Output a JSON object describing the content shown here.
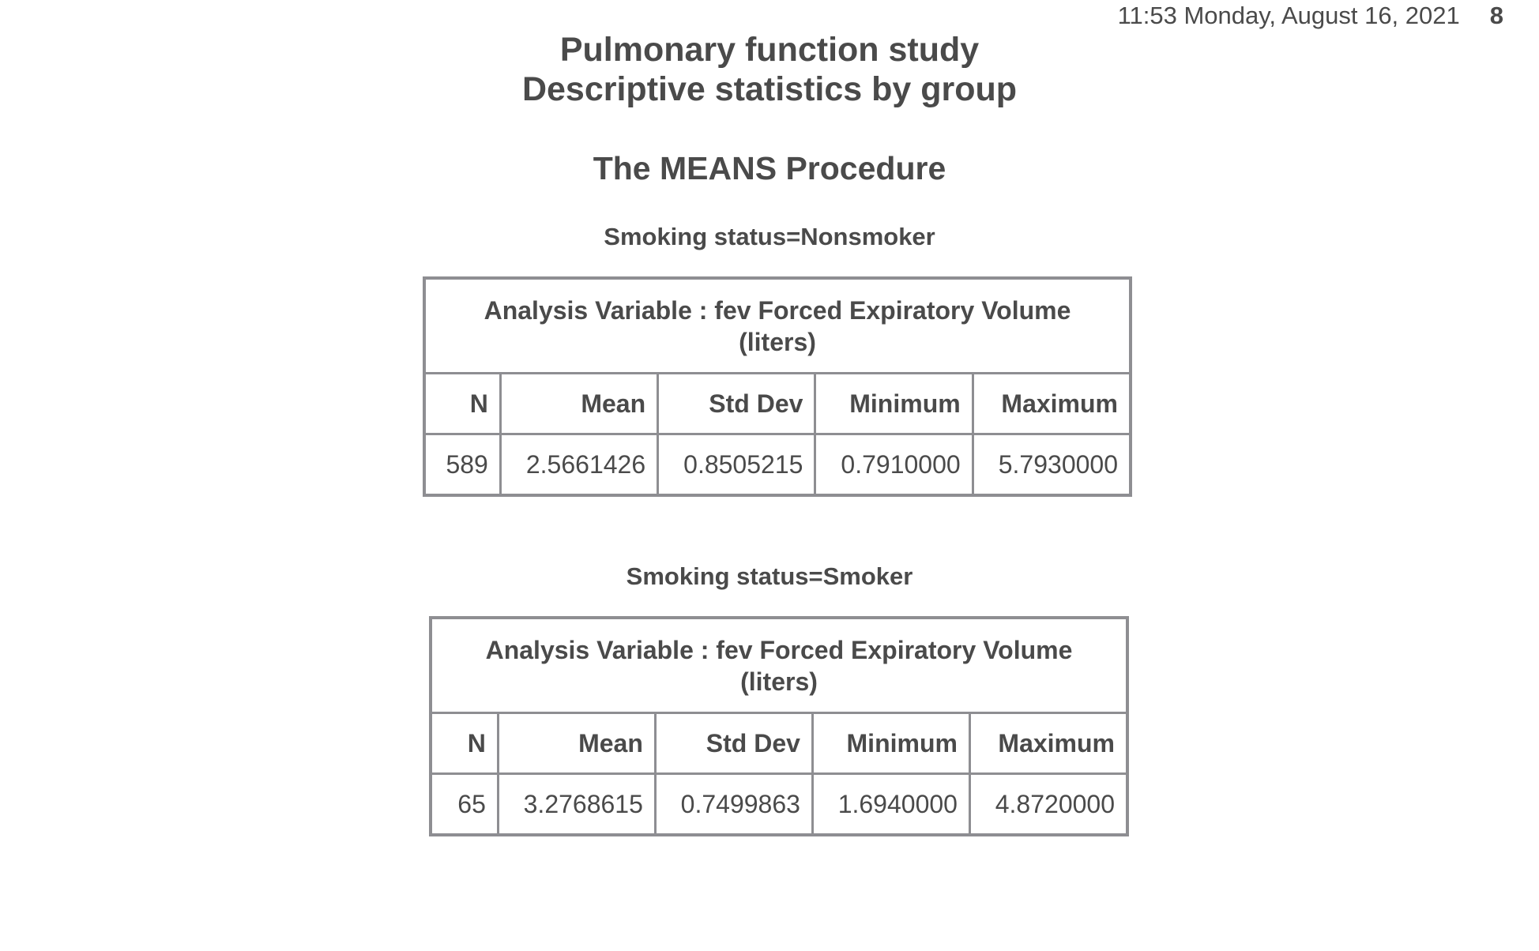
{
  "header": {
    "timestamp": "11:53 Monday, August 16, 2021",
    "page_number": "8"
  },
  "titles": {
    "line1": "Pulmonary function study",
    "line2": "Descriptive statistics by group"
  },
  "procedure_title": "The MEANS Procedure",
  "groups": [
    {
      "label": "Smoking status=Nonsmoker",
      "analysis_variable_line1": "Analysis Variable : fev Forced Expiratory Volume",
      "analysis_variable_line2": "(liters)",
      "columns": [
        "N",
        "Mean",
        "Std Dev",
        "Minimum",
        "Maximum"
      ],
      "values": [
        "589",
        "2.5661426",
        "0.8505215",
        "0.7910000",
        "5.7930000"
      ]
    },
    {
      "label": "Smoking status=Smoker",
      "analysis_variable_line1": "Analysis Variable : fev Forced Expiratory Volume",
      "analysis_variable_line2": "(liters)",
      "columns": [
        "N",
        "Mean",
        "Std Dev",
        "Minimum",
        "Maximum"
      ],
      "values": [
        "65",
        "3.2768615",
        "0.7499863",
        "1.6940000",
        "4.8720000"
      ]
    }
  ]
}
